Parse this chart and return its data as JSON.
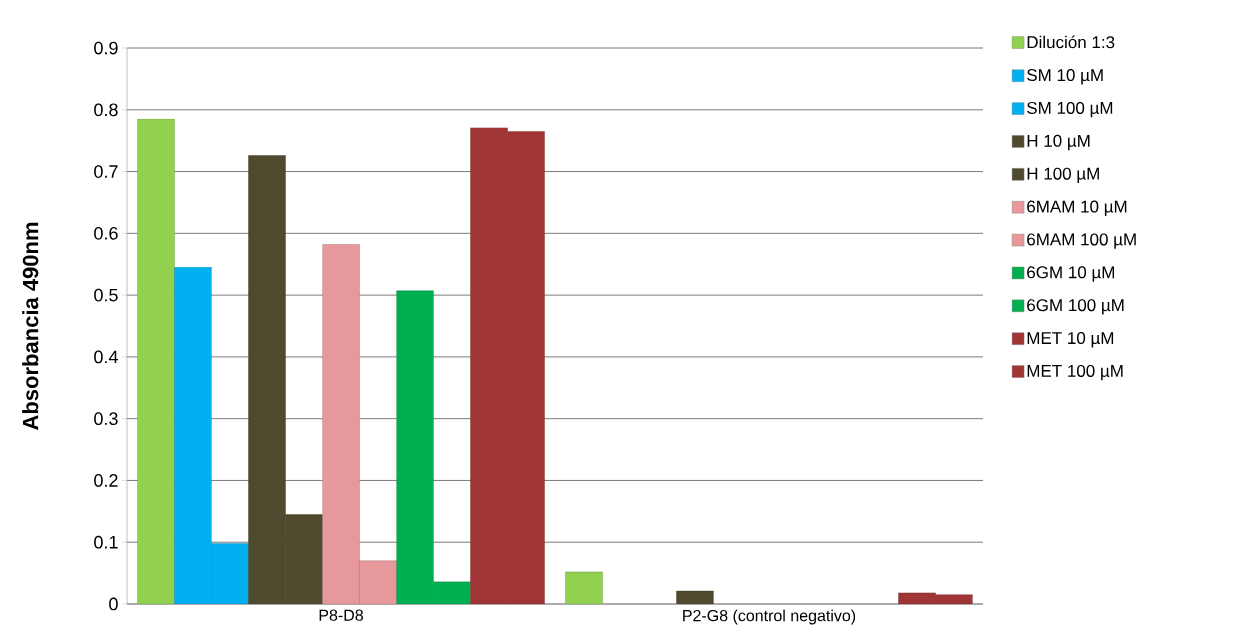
{
  "chart_data": {
    "type": "bar",
    "ylabel": "Absorbancia 490nm",
    "categories": [
      "P8-D8",
      "P2-G8 (control negativo)"
    ],
    "series": [
      {
        "name": "Dilución 1:3",
        "color": "#92d050",
        "values": [
          0.785,
          0.052
        ]
      },
      {
        "name": "SM 10 µM",
        "color": "#00b0f0",
        "values": [
          0.545,
          null
        ]
      },
      {
        "name": "SM 100 µM",
        "color": "#00b0f0",
        "values": [
          0.098,
          null
        ]
      },
      {
        "name": "H 10 µM",
        "color": "#4f4a2e",
        "values": [
          0.726,
          0.021
        ]
      },
      {
        "name": "H 100 µM",
        "color": "#4f4a2e",
        "values": [
          0.145,
          null
        ]
      },
      {
        "name": "6MAM 10 µM",
        "color": "#e6989a",
        "values": [
          0.582,
          null
        ]
      },
      {
        "name": "6MAM 100 µM",
        "color": "#e6989a",
        "values": [
          0.07,
          null
        ]
      },
      {
        "name": "6GM 10 µM",
        "color": "#00b050",
        "values": [
          0.507,
          null
        ]
      },
      {
        "name": "6GM 100 µM",
        "color": "#00b050",
        "values": [
          0.036,
          null
        ]
      },
      {
        "name": "MET 10 µM",
        "color": "#a03535",
        "values": [
          0.771,
          0.018
        ]
      },
      {
        "name": "MET 100 µM",
        "color": "#a03535",
        "values": [
          0.765,
          0.015
        ]
      }
    ],
    "ylim": [
      0,
      0.9
    ],
    "yticks": [
      0,
      0.1,
      0.2,
      0.3,
      0.4,
      0.5,
      0.6,
      0.7,
      0.8,
      0.9
    ],
    "grid": "y",
    "legend": "right"
  }
}
